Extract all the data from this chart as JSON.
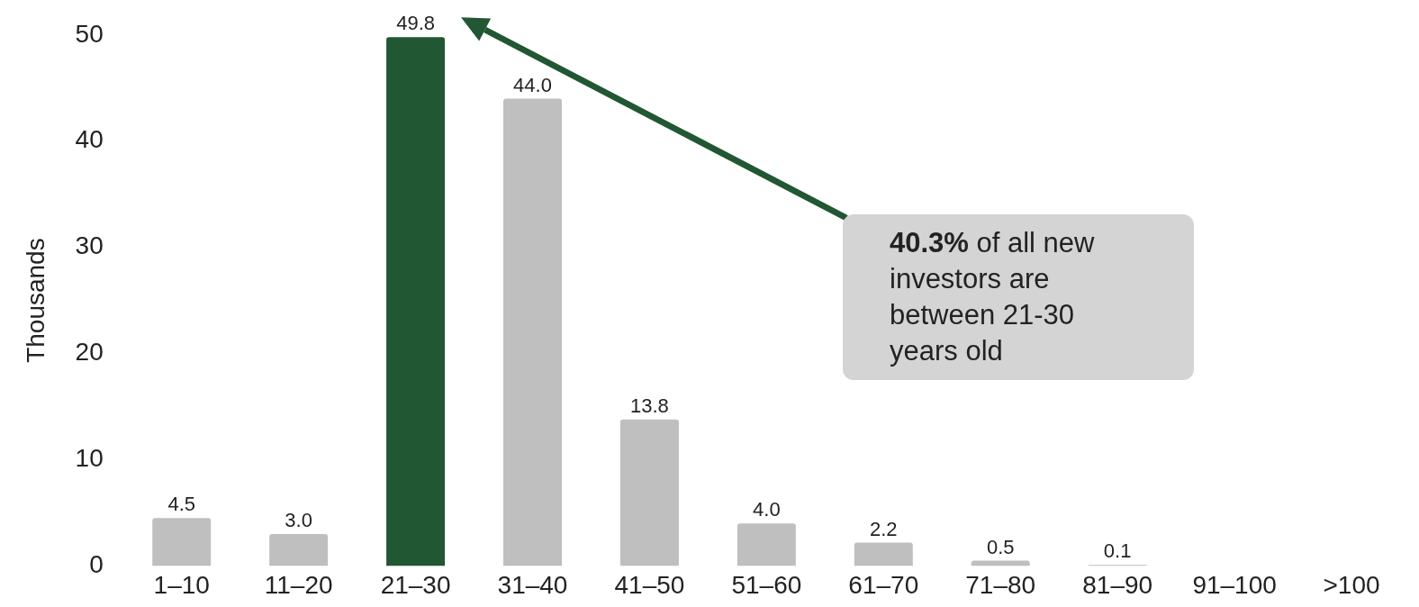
{
  "chart_data": {
    "type": "bar",
    "ylabel": "Thousands",
    "categories": [
      "1–10",
      "11–20",
      "21–30",
      "31–40",
      "41–50",
      "51–60",
      "61–70",
      "71–80",
      "81–90",
      "91–100",
      ">100"
    ],
    "values": [
      4.5,
      3.0,
      49.8,
      44.0,
      13.8,
      4.0,
      2.2,
      0.5,
      0.1,
      null,
      null
    ],
    "value_labels": [
      "4.5",
      "3.0",
      "49.8",
      "44.0",
      "13.8",
      "4.0",
      "2.2",
      "0.5",
      "0.1",
      null,
      null
    ],
    "colors": [
      "#bfbfbf",
      "#bfbfbf",
      "#215732",
      "#bfbfbf",
      "#bfbfbf",
      "#bfbfbf",
      "#bfbfbf",
      "#bfbfbf",
      "#bfbfbf",
      "#bfbfbf",
      "#bfbfbf"
    ],
    "ylim": [
      0,
      50
    ],
    "yticks": [
      0,
      10,
      20,
      30,
      40,
      50
    ],
    "grid": false,
    "legend": false,
    "annotations": [
      "40.3% of all new investors are between 21-30 years old"
    ]
  }
}
